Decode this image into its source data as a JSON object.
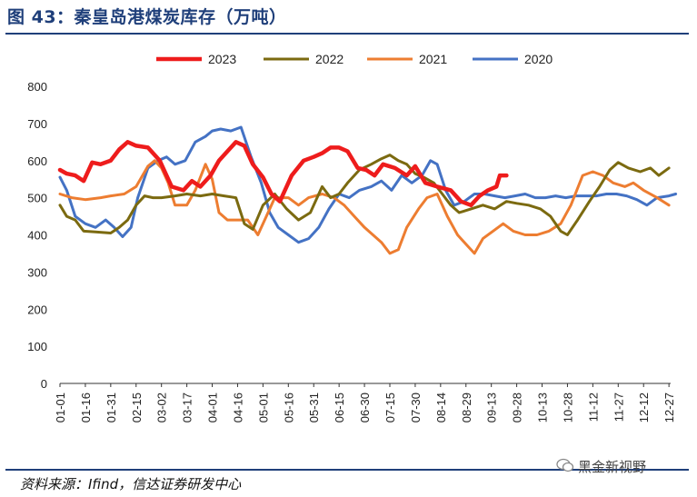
{
  "header": {
    "title": "图 43：秦皇岛港煤炭库存（万吨）"
  },
  "footer": {
    "source": "资料来源：Ifind，信达证券研发中心",
    "watermark": "黑金新视野"
  },
  "icons": {
    "watermark_icon": "wechat-icon"
  },
  "chart_data": {
    "type": "line",
    "title": "秦皇岛港煤炭库存（万吨）",
    "xlabel": "",
    "ylabel": "",
    "ylim": [
      0,
      800
    ],
    "yticks": [
      0,
      100,
      200,
      300,
      400,
      500,
      600,
      700,
      800
    ],
    "x_domain_days": [
      0,
      361
    ],
    "xticks": [
      "01-01",
      "01-16",
      "01-31",
      "02-15",
      "03-02",
      "03-17",
      "04-01",
      "04-16",
      "05-01",
      "05-16",
      "05-31",
      "06-15",
      "06-30",
      "07-15",
      "07-30",
      "08-14",
      "08-29",
      "09-13",
      "09-28",
      "10-13",
      "10-28",
      "11-12",
      "11-27",
      "12-12",
      "12-27"
    ],
    "grid": false,
    "legend_position": "top",
    "series": [
      {
        "name": "2023",
        "color": "#ee1c1c",
        "points": [
          [
            "01-01",
            575
          ],
          [
            "01-05",
            565
          ],
          [
            "01-10",
            560
          ],
          [
            "01-15",
            545
          ],
          [
            "01-20",
            595
          ],
          [
            "01-25",
            590
          ],
          [
            "01-31",
            600
          ],
          [
            "02-05",
            630
          ],
          [
            "02-10",
            650
          ],
          [
            "02-15",
            640
          ],
          [
            "02-22",
            635
          ],
          [
            "03-01",
            600
          ],
          [
            "03-08",
            530
          ],
          [
            "03-15",
            520
          ],
          [
            "03-20",
            545
          ],
          [
            "03-25",
            530
          ],
          [
            "03-31",
            560
          ],
          [
            "04-05",
            600
          ],
          [
            "04-10",
            625
          ],
          [
            "04-15",
            650
          ],
          [
            "04-20",
            640
          ],
          [
            "04-25",
            590
          ],
          [
            "05-01",
            555
          ],
          [
            "05-06",
            510
          ],
          [
            "05-11",
            490
          ],
          [
            "05-18",
            560
          ],
          [
            "05-25",
            600
          ],
          [
            "05-31",
            610
          ],
          [
            "06-05",
            620
          ],
          [
            "06-10",
            635
          ],
          [
            "06-15",
            635
          ],
          [
            "06-20",
            625
          ],
          [
            "06-26",
            580
          ],
          [
            "07-01",
            575
          ],
          [
            "07-06",
            560
          ],
          [
            "07-11",
            590
          ],
          [
            "07-18",
            580
          ],
          [
            "07-25",
            560
          ],
          [
            "07-30",
            585
          ],
          [
            "08-05",
            540
          ],
          [
            "08-12",
            530
          ],
          [
            "08-20",
            520
          ],
          [
            "08-26",
            490
          ],
          [
            "09-01",
            480
          ],
          [
            "09-06",
            505
          ],
          [
            "09-11",
            520
          ],
          [
            "09-16",
            530
          ],
          [
            "09-18",
            560
          ],
          [
            "09-22",
            560
          ]
        ]
      },
      {
        "name": "2022",
        "color": "#7b6a10",
        "points": [
          [
            "01-01",
            480
          ],
          [
            "01-05",
            450
          ],
          [
            "01-10",
            440
          ],
          [
            "01-15",
            410
          ],
          [
            "01-22",
            408
          ],
          [
            "01-31",
            405
          ],
          [
            "02-05",
            420
          ],
          [
            "02-10",
            440
          ],
          [
            "02-15",
            480
          ],
          [
            "02-20",
            505
          ],
          [
            "02-25",
            500
          ],
          [
            "03-02",
            500
          ],
          [
            "03-10",
            505
          ],
          [
            "03-17",
            510
          ],
          [
            "03-25",
            505
          ],
          [
            "04-01",
            510
          ],
          [
            "04-08",
            505
          ],
          [
            "04-15",
            500
          ],
          [
            "04-20",
            430
          ],
          [
            "04-25",
            415
          ],
          [
            "05-01",
            480
          ],
          [
            "05-08",
            510
          ],
          [
            "05-15",
            470
          ],
          [
            "05-22",
            440
          ],
          [
            "05-29",
            460
          ],
          [
            "06-05",
            530
          ],
          [
            "06-10",
            500
          ],
          [
            "06-15",
            510
          ],
          [
            "06-20",
            540
          ],
          [
            "06-27",
            575
          ],
          [
            "07-04",
            590
          ],
          [
            "07-10",
            605
          ],
          [
            "07-15",
            615
          ],
          [
            "07-20",
            600
          ],
          [
            "07-25",
            590
          ],
          [
            "07-30",
            565
          ],
          [
            "08-04",
            555
          ],
          [
            "08-10",
            540
          ],
          [
            "08-15",
            510
          ],
          [
            "08-20",
            480
          ],
          [
            "08-25",
            460
          ],
          [
            "09-01",
            470
          ],
          [
            "09-08",
            480
          ],
          [
            "09-15",
            470
          ],
          [
            "09-22",
            490
          ],
          [
            "09-28",
            485
          ],
          [
            "10-05",
            480
          ],
          [
            "10-12",
            470
          ],
          [
            "10-18",
            450
          ],
          [
            "10-24",
            410
          ],
          [
            "10-28",
            400
          ],
          [
            "11-03",
            440
          ],
          [
            "11-10",
            490
          ],
          [
            "11-16",
            530
          ],
          [
            "11-22",
            575
          ],
          [
            "11-27",
            595
          ],
          [
            "12-03",
            580
          ],
          [
            "12-10",
            570
          ],
          [
            "12-16",
            580
          ],
          [
            "12-21",
            560
          ],
          [
            "12-27",
            580
          ]
        ]
      },
      {
        "name": "2021",
        "color": "#ed7d31",
        "points": [
          [
            "01-01",
            510
          ],
          [
            "01-08",
            500
          ],
          [
            "01-16",
            495
          ],
          [
            "01-25",
            500
          ],
          [
            "01-31",
            505
          ],
          [
            "02-08",
            510
          ],
          [
            "02-15",
            530
          ],
          [
            "02-22",
            585
          ],
          [
            "02-26",
            600
          ],
          [
            "03-02",
            580
          ],
          [
            "03-06",
            540
          ],
          [
            "03-10",
            480
          ],
          [
            "03-17",
            480
          ],
          [
            "03-22",
            520
          ],
          [
            "03-28",
            590
          ],
          [
            "04-01",
            550
          ],
          [
            "04-05",
            460
          ],
          [
            "04-10",
            440
          ],
          [
            "04-16",
            440
          ],
          [
            "04-22",
            440
          ],
          [
            "04-28",
            400
          ],
          [
            "05-03",
            450
          ],
          [
            "05-08",
            500
          ],
          [
            "05-16",
            500
          ],
          [
            "05-22",
            480
          ],
          [
            "05-28",
            500
          ],
          [
            "06-05",
            510
          ],
          [
            "06-12",
            500
          ],
          [
            "06-18",
            480
          ],
          [
            "06-24",
            450
          ],
          [
            "06-30",
            420
          ],
          [
            "07-05",
            400
          ],
          [
            "07-10",
            380
          ],
          [
            "07-15",
            350
          ],
          [
            "07-20",
            360
          ],
          [
            "07-25",
            420
          ],
          [
            "08-01",
            470
          ],
          [
            "08-06",
            500
          ],
          [
            "08-12",
            510
          ],
          [
            "08-18",
            450
          ],
          [
            "08-24",
            400
          ],
          [
            "08-30",
            370
          ],
          [
            "09-03",
            350
          ],
          [
            "09-08",
            390
          ],
          [
            "09-14",
            410
          ],
          [
            "09-20",
            430
          ],
          [
            "09-26",
            410
          ],
          [
            "10-03",
            400
          ],
          [
            "10-10",
            400
          ],
          [
            "10-17",
            410
          ],
          [
            "10-24",
            430
          ],
          [
            "10-30",
            480
          ],
          [
            "11-06",
            560
          ],
          [
            "11-12",
            570
          ],
          [
            "11-18",
            560
          ],
          [
            "11-24",
            540
          ],
          [
            "12-01",
            530
          ],
          [
            "12-06",
            540
          ],
          [
            "12-12",
            520
          ],
          [
            "12-20",
            500
          ],
          [
            "12-27",
            480
          ]
        ]
      },
      {
        "name": "2020",
        "color": "#4472c4",
        "points": [
          [
            "01-01",
            555
          ],
          [
            "01-05",
            520
          ],
          [
            "01-10",
            450
          ],
          [
            "01-16",
            430
          ],
          [
            "01-22",
            420
          ],
          [
            "01-28",
            440
          ],
          [
            "02-02",
            420
          ],
          [
            "02-07",
            395
          ],
          [
            "02-12",
            420
          ],
          [
            "02-16",
            500
          ],
          [
            "02-22",
            580
          ],
          [
            "02-28",
            600
          ],
          [
            "03-05",
            610
          ],
          [
            "03-10",
            590
          ],
          [
            "03-16",
            600
          ],
          [
            "03-22",
            650
          ],
          [
            "03-28",
            665
          ],
          [
            "04-01",
            680
          ],
          [
            "04-06",
            685
          ],
          [
            "04-12",
            680
          ],
          [
            "04-18",
            690
          ],
          [
            "04-24",
            610
          ],
          [
            "04-30",
            540
          ],
          [
            "05-05",
            460
          ],
          [
            "05-10",
            420
          ],
          [
            "05-16",
            400
          ],
          [
            "05-22",
            380
          ],
          [
            "05-28",
            390
          ],
          [
            "06-03",
            420
          ],
          [
            "06-09",
            470
          ],
          [
            "06-15",
            510
          ],
          [
            "06-21",
            500
          ],
          [
            "06-27",
            520
          ],
          [
            "07-04",
            530
          ],
          [
            "07-10",
            545
          ],
          [
            "07-16",
            520
          ],
          [
            "07-22",
            560
          ],
          [
            "07-28",
            540
          ],
          [
            "08-03",
            560
          ],
          [
            "08-08",
            600
          ],
          [
            "08-12",
            590
          ],
          [
            "08-17",
            520
          ],
          [
            "08-22",
            480
          ],
          [
            "08-28",
            490
          ],
          [
            "09-03",
            510
          ],
          [
            "09-09",
            510
          ],
          [
            "09-15",
            505
          ],
          [
            "09-21",
            500
          ],
          [
            "09-27",
            505
          ],
          [
            "10-03",
            510
          ],
          [
            "10-09",
            500
          ],
          [
            "10-15",
            500
          ],
          [
            "10-21",
            505
          ],
          [
            "10-27",
            500
          ],
          [
            "11-02",
            505
          ],
          [
            "11-08",
            505
          ],
          [
            "11-14",
            505
          ],
          [
            "11-20",
            510
          ],
          [
            "11-26",
            510
          ],
          [
            "12-02",
            505
          ],
          [
            "12-08",
            495
          ],
          [
            "12-14",
            480
          ],
          [
            "12-20",
            500
          ],
          [
            "12-27",
            505
          ],
          [
            "12-31",
            510
          ]
        ]
      }
    ]
  }
}
